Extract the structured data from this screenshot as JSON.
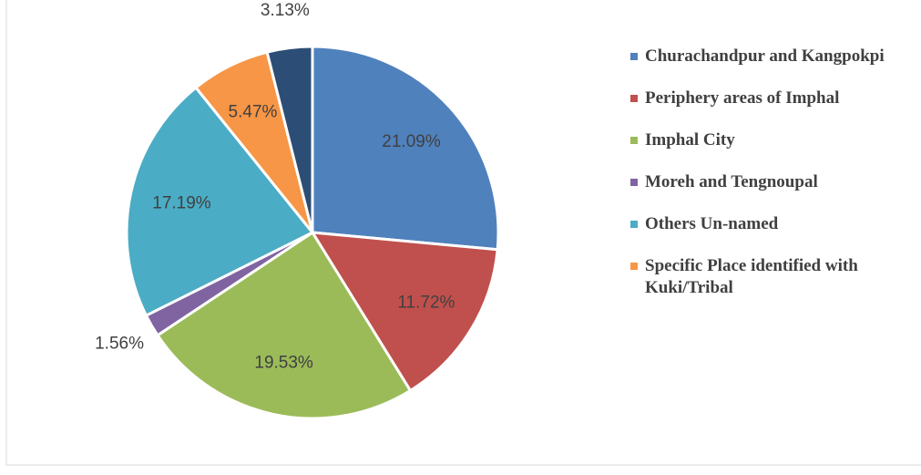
{
  "chart_data": {
    "type": "pie",
    "categories": [
      "Churachandpur and Kangpokpi",
      "Periphery areas of Imphal",
      "Imphal City",
      "Moreh and Tengnoupal",
      "Others Un-named",
      "Specific Place identified with Kuki/Tribal",
      null
    ],
    "values": [
      21.09,
      11.72,
      19.53,
      1.56,
      17.19,
      5.47,
      3.13
    ],
    "value_labels": [
      "21.09%",
      "11.72%",
      "19.53%",
      "1.56%",
      "17.19%",
      "5.47%",
      "3.13%"
    ],
    "colors": [
      "#4f81bd",
      "#c0504d",
      "#9bbb59",
      "#8064a2",
      "#4bacc6",
      "#f79646",
      "#2c4d75"
    ],
    "legend": "right"
  }
}
